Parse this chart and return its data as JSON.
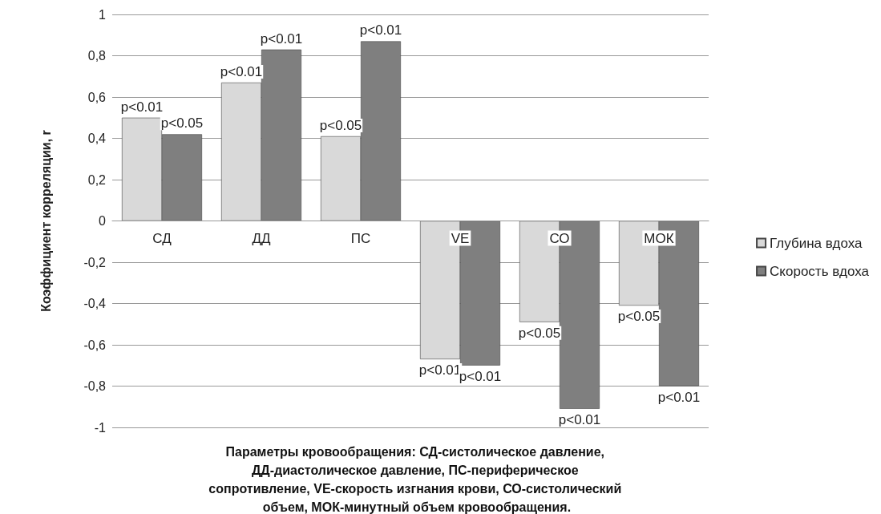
{
  "chart_data": {
    "type": "bar",
    "xlabel": "Параметры кровообращения: СД-систолическое давление, ДД-диастолическое давление, ПС-периферическое сопротивление, VE-скорость изгнания крови, СО-систолический объем, МОК-минутный объем кровообращения.",
    "ylabel": "Коэффициент корреляции, r",
    "categories": [
      "СД",
      "ДД",
      "ПС",
      "VE",
      "СО",
      "МОК"
    ],
    "series": [
      {
        "name": "Глубина вдоха",
        "color": "#d9d9d9",
        "values": [
          0.5,
          0.67,
          0.41,
          -0.67,
          -0.49,
          -0.41
        ],
        "value_labels": [
          "p<0.01",
          "p<0.01",
          "p<0.05",
          "p<0.01",
          "p<0.05",
          "p<0.05"
        ]
      },
      {
        "name": "Скорость вдоха",
        "color": "#7f7f7f",
        "values": [
          0.42,
          0.83,
          0.87,
          -0.7,
          -0.91,
          -0.8
        ],
        "value_labels": [
          "p<0.05",
          "p<0.01",
          "p<0.01",
          "p<0.01",
          "p<0.01",
          "p<0.01"
        ]
      }
    ],
    "ylim": [
      -1,
      1
    ],
    "yticks": [
      {
        "value": -1,
        "label": "-1"
      },
      {
        "value": -0.8,
        "label": "-0,8"
      },
      {
        "value": -0.6,
        "label": "-0,6"
      },
      {
        "value": -0.4,
        "label": "-0,4"
      },
      {
        "value": -0.2,
        "label": "-0,2"
      },
      {
        "value": 0,
        "label": "0"
      },
      {
        "value": 0.2,
        "label": "0,2"
      },
      {
        "value": 0.4,
        "label": "0,4"
      },
      {
        "value": 0.6,
        "label": "0,6"
      },
      {
        "value": 0.8,
        "label": "0,8"
      },
      {
        "value": 1,
        "label": "1"
      }
    ],
    "grid": "y",
    "legend": "right"
  }
}
